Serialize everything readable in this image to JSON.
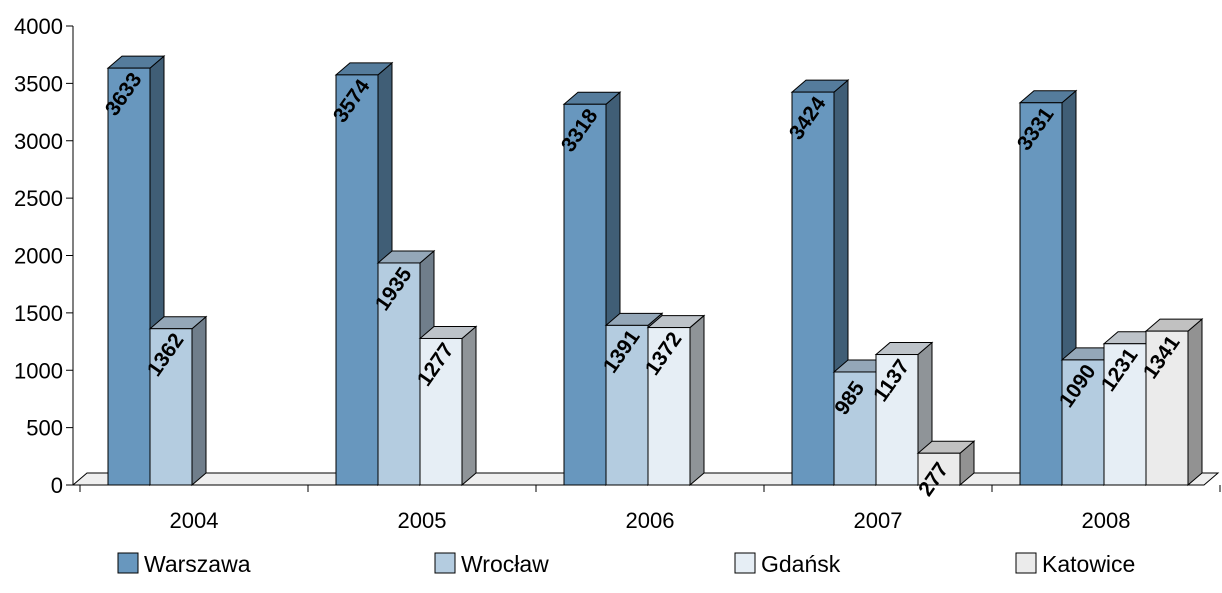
{
  "chart_data": {
    "type": "bar",
    "style": "3d-clustered-column",
    "categories": [
      "2004",
      "2005",
      "2006",
      "2007",
      "2008"
    ],
    "series": [
      {
        "name": "Warszawa",
        "color": "#6897BE",
        "values": [
          3633,
          3574,
          3318,
          3424,
          3331
        ]
      },
      {
        "name": "Wrocław",
        "color": "#B4CCE0",
        "values": [
          1362,
          1935,
          1391,
          985,
          1090
        ]
      },
      {
        "name": "Gdańsk",
        "color": "#E6EEF5",
        "values": [
          null,
          1277,
          1372,
          1137,
          1231
        ]
      },
      {
        "name": "Katowice",
        "color": "#EBEBEB",
        "values": [
          null,
          null,
          null,
          277,
          1341
        ]
      }
    ],
    "data_labels": [
      [
        "3633",
        "3574",
        "3318",
        "3424",
        "3331"
      ],
      [
        "1362",
        "1935",
        "1391",
        "985",
        "1090"
      ],
      [
        null,
        "1277",
        "1372",
        "1137",
        "1231"
      ],
      [
        null,
        null,
        null,
        "277",
        "1341"
      ]
    ],
    "y_ticks": [
      "0",
      "500",
      "1000",
      "1500",
      "2000",
      "2500",
      "3000",
      "3500",
      "4000"
    ],
    "ylim": [
      0,
      4000
    ],
    "grid": false,
    "legend_position": "bottom",
    "title": "",
    "xlabel": "",
    "ylabel": ""
  }
}
